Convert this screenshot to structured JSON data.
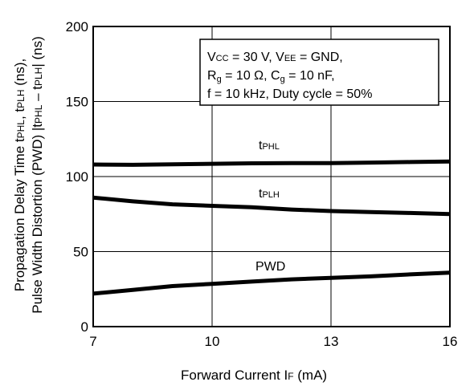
{
  "chart_data": {
    "type": "line",
    "xlabel": "Forward Current  I",
    "xlabel_sub": "F",
    "xlabel_unit": " (mA)",
    "ylabel_line1": "Propagation Delay Time  t",
    "ylabel_line1_sub1": "PHL",
    "ylabel_line1_mid": ", t",
    "ylabel_line1_sub2": "PLH",
    "ylabel_line1_end": " (ns),",
    "ylabel_line2": "Pulse Width Distortion (PWD)  |t",
    "ylabel_line2_sub1": "PHL",
    "ylabel_line2_mid": " – t",
    "ylabel_line2_sub2": "PLH",
    "ylabel_line2_end": "| (ns)",
    "xlim": [
      7,
      16
    ],
    "ylim": [
      0,
      200
    ],
    "xticks": [
      7,
      10,
      13,
      16
    ],
    "yticks": [
      0,
      50,
      100,
      150,
      200
    ],
    "grid": true,
    "annotation_lines": [
      "V_CC = 30 V, V_EE = GND,",
      "R_g = 10 Ω, C_g = 10 nF,",
      "f = 10 kHz, Duty cycle = 50%"
    ],
    "annotation": {
      "l1_a": "V",
      "l1_a_sub": "CC",
      "l1_b": " = 30 V, V",
      "l1_b_sub": "EE",
      "l1_c": " = GND,",
      "l2_a": "R",
      "l2_a_sub": "g",
      "l2_b": " = 10 Ω, C",
      "l2_b_sub": "g",
      "l2_c": " = 10 nF,",
      "l3": "f = 10 kHz, Duty cycle = 50%"
    },
    "series": [
      {
        "name": "tPHL",
        "label_main": "t",
        "label_sub": "PHL",
        "x": [
          7,
          8,
          9,
          10,
          11,
          12,
          13,
          14,
          15,
          16
        ],
        "y": [
          108,
          107.8,
          108.2,
          108.5,
          108.8,
          109,
          109,
          109.3,
          109.7,
          110
        ]
      },
      {
        "name": "tPLH",
        "label_main": "t",
        "label_sub": "PLH",
        "x": [
          7,
          8,
          9,
          10,
          11,
          12,
          13,
          14,
          15,
          16
        ],
        "y": [
          86,
          83.5,
          81.5,
          80.5,
          79.5,
          78,
          77,
          76.3,
          75.7,
          75
        ]
      },
      {
        "name": "PWD",
        "label_main": "PWD",
        "label_sub": "",
        "x": [
          7,
          8,
          9,
          10,
          11,
          12,
          13,
          14,
          15,
          16
        ],
        "y": [
          22,
          24.5,
          27,
          28.5,
          30,
          31.5,
          32.5,
          33.5,
          34.8,
          36
        ]
      }
    ]
  }
}
